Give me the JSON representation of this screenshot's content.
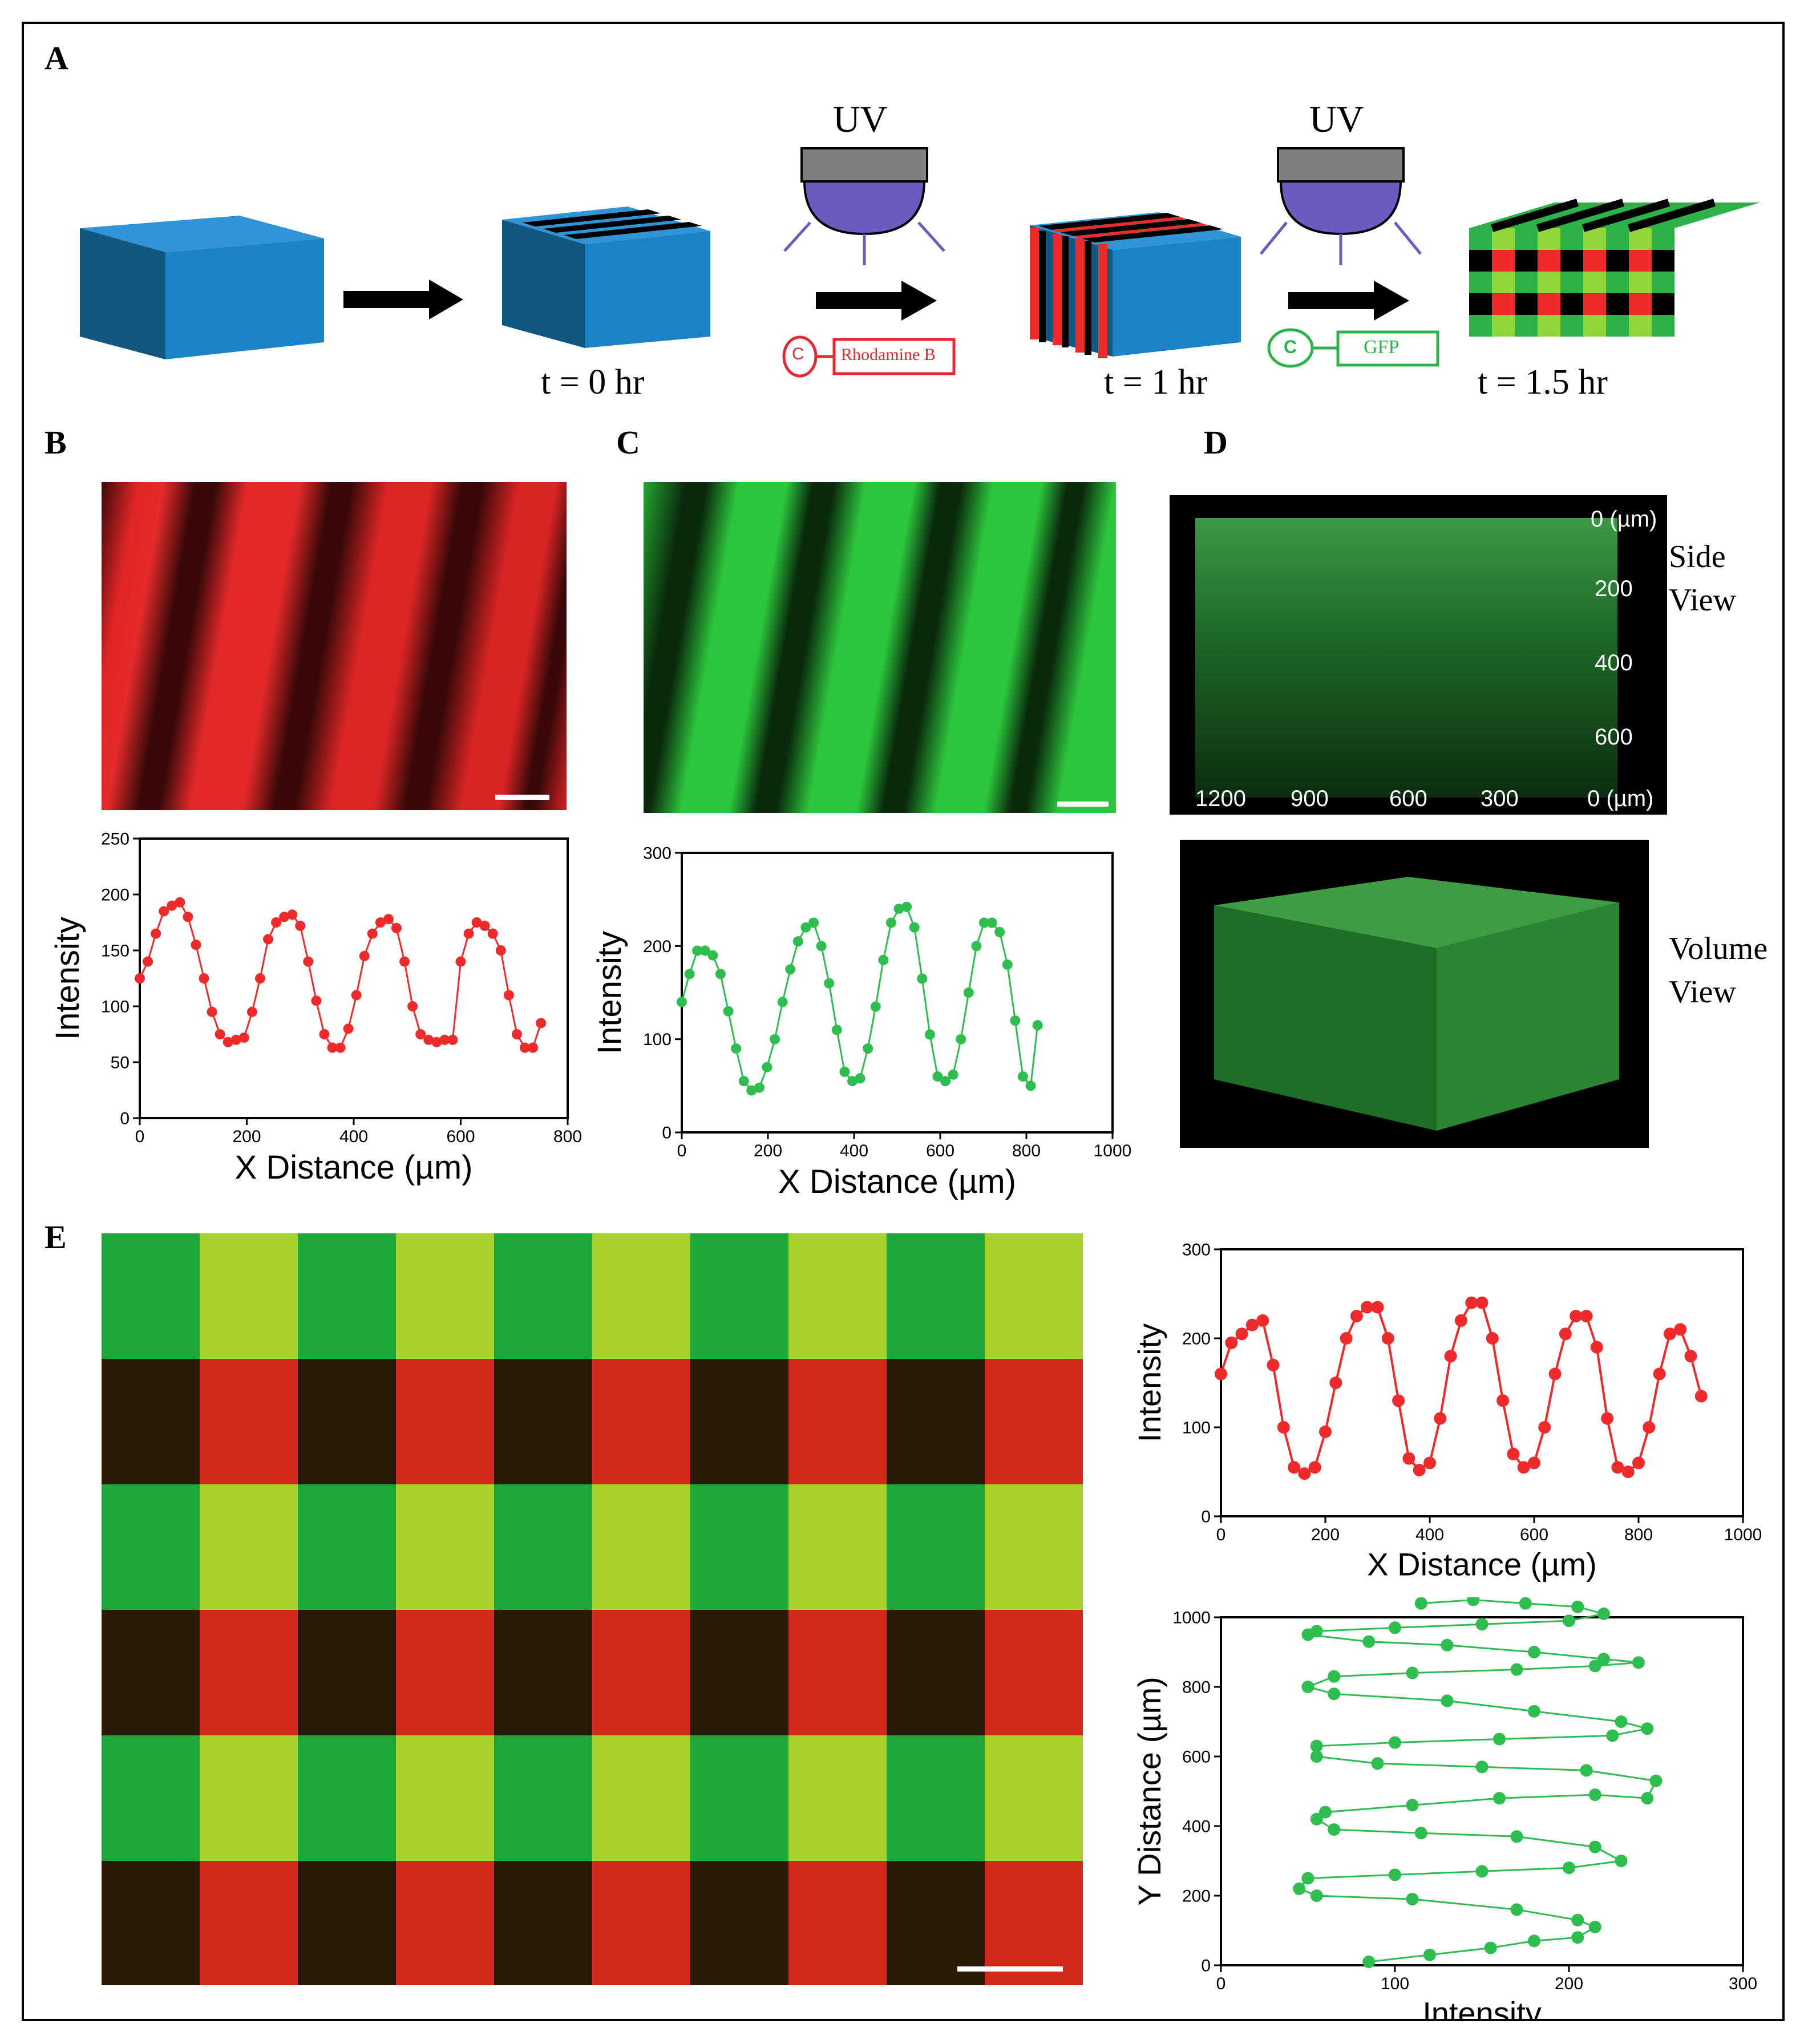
{
  "panels": {
    "a": "A",
    "b": "B",
    "c": "C",
    "d": "D",
    "e": "E"
  },
  "panel_a": {
    "uv_label_1": "UV",
    "uv_label_2": "UV",
    "time_1": "t = 0 hr",
    "time_2": "t = 1 hr",
    "time_3": "t = 1.5 hr",
    "reagent_1": {
      "tag": "C",
      "name": "Rhodamine B",
      "color": "#e8282f"
    },
    "reagent_2": {
      "tag": "C",
      "name": "GFP",
      "color": "#2bb34a"
    },
    "block_color": "#1b7fc1",
    "uv_lamp_color": "#6a5bbf"
  },
  "panel_d": {
    "side_ticks_right": [
      "0 (µm)",
      "200",
      "400",
      "600"
    ],
    "side_ticks_bottom": [
      "1200",
      "900",
      "600",
      "300",
      "0 (µm)"
    ],
    "side_view_label": [
      "Side",
      "View"
    ],
    "volume_view_label": [
      "Volume",
      "View"
    ]
  },
  "chart_data": [
    {
      "id": "B",
      "type": "line",
      "color": "#ee2a2a",
      "xlabel": "X Distance (µm)",
      "ylabel": "Intensity",
      "xlim": [
        0,
        800
      ],
      "ylim": [
        0,
        250
      ],
      "xticks": [
        0,
        200,
        400,
        600,
        800
      ],
      "yticks": [
        0,
        50,
        100,
        150,
        200,
        250
      ],
      "x": [
        0,
        15,
        30,
        45,
        60,
        75,
        90,
        105,
        120,
        135,
        150,
        165,
        180,
        195,
        210,
        225,
        240,
        255,
        270,
        285,
        300,
        315,
        330,
        345,
        360,
        375,
        390,
        405,
        420,
        435,
        450,
        465,
        480,
        495,
        510,
        525,
        540,
        555,
        570,
        585,
        600,
        615,
        630,
        645,
        660,
        675,
        690,
        705,
        720,
        735,
        750
      ],
      "y": [
        125,
        140,
        165,
        185,
        190,
        193,
        180,
        155,
        125,
        95,
        75,
        68,
        70,
        72,
        95,
        125,
        160,
        175,
        180,
        182,
        172,
        140,
        105,
        75,
        63,
        63,
        80,
        110,
        145,
        165,
        175,
        178,
        170,
        140,
        100,
        75,
        70,
        68,
        70,
        70,
        140,
        165,
        175,
        172,
        165,
        150,
        110,
        75,
        63,
        63,
        85
      ]
    },
    {
      "id": "C",
      "type": "line",
      "color": "#2ebd4f",
      "xlabel": "X Distance (µm)",
      "ylabel": "Intensity",
      "xlim": [
        0,
        1000
      ],
      "ylim": [
        0,
        300
      ],
      "xticks": [
        0,
        200,
        400,
        600,
        800,
        1000
      ],
      "yticks": [
        0,
        100,
        200,
        300
      ],
      "x": [
        0,
        18,
        36,
        54,
        72,
        90,
        108,
        126,
        144,
        162,
        180,
        198,
        216,
        234,
        252,
        270,
        288,
        306,
        324,
        342,
        360,
        378,
        396,
        414,
        432,
        450,
        468,
        486,
        504,
        522,
        540,
        558,
        576,
        594,
        612,
        630,
        648,
        666,
        684,
        702,
        720,
        738,
        756,
        774,
        792,
        810,
        826
      ],
      "y": [
        140,
        170,
        195,
        195,
        190,
        170,
        130,
        90,
        55,
        45,
        48,
        70,
        100,
        140,
        175,
        205,
        220,
        225,
        200,
        160,
        110,
        65,
        55,
        58,
        90,
        135,
        185,
        225,
        240,
        242,
        220,
        165,
        105,
        60,
        55,
        62,
        100,
        150,
        200,
        225,
        225,
        215,
        180,
        120,
        60,
        50,
        115
      ]
    },
    {
      "id": "E-top",
      "type": "line",
      "color": "#ee2a2a",
      "xlabel": "X Distance (µm)",
      "ylabel": "Intensity",
      "xlim": [
        0,
        1000
      ],
      "ylim": [
        0,
        300
      ],
      "xticks": [
        0,
        200,
        400,
        600,
        800,
        1000
      ],
      "yticks": [
        0,
        100,
        200,
        300
      ],
      "x": [
        0,
        20,
        40,
        60,
        80,
        100,
        120,
        140,
        160,
        180,
        200,
        220,
        240,
        260,
        280,
        300,
        320,
        340,
        360,
        380,
        400,
        420,
        440,
        460,
        480,
        500,
        520,
        540,
        560,
        580,
        600,
        620,
        640,
        660,
        680,
        700,
        720,
        740,
        760,
        780,
        800,
        820,
        840,
        860,
        880,
        900,
        920
      ],
      "y": [
        160,
        195,
        205,
        215,
        220,
        170,
        100,
        55,
        48,
        55,
        95,
        150,
        200,
        225,
        235,
        235,
        200,
        130,
        65,
        52,
        60,
        110,
        180,
        220,
        240,
        240,
        200,
        130,
        70,
        55,
        60,
        100,
        160,
        205,
        225,
        225,
        190,
        110,
        55,
        50,
        60,
        100,
        160,
        205,
        210,
        180,
        135
      ]
    },
    {
      "id": "E-bottom",
      "type": "line",
      "color": "#2ebd4f",
      "xlabel": "Intensity",
      "ylabel": "Y  Distance (µm)",
      "xlim": [
        0,
        300
      ],
      "ylim": [
        0,
        1000
      ],
      "xticks": [
        0,
        100,
        200,
        300
      ],
      "yticks": [
        0,
        200,
        400,
        600,
        800,
        1000
      ],
      "x": [
        85,
        120,
        155,
        180,
        205,
        215,
        205,
        170,
        110,
        55,
        45,
        50,
        100,
        150,
        200,
        230,
        215,
        170,
        115,
        65,
        55,
        60,
        110,
        160,
        215,
        245,
        250,
        210,
        150,
        90,
        55,
        55,
        100,
        160,
        225,
        245,
        230,
        180,
        130,
        65,
        50,
        65,
        110,
        170,
        215,
        240,
        220,
        180,
        130,
        85,
        50,
        55,
        100,
        150,
        200,
        220,
        205,
        175,
        145,
        115
      ],
      "y": [
        10,
        30,
        50,
        70,
        80,
        110,
        130,
        160,
        190,
        200,
        220,
        250,
        260,
        270,
        280,
        300,
        340,
        370,
        380,
        390,
        420,
        440,
        460,
        480,
        490,
        480,
        530,
        560,
        570,
        580,
        600,
        630,
        640,
        650,
        660,
        680,
        700,
        730,
        760,
        780,
        800,
        830,
        840,
        850,
        860,
        870,
        880,
        900,
        920,
        930,
        950,
        960,
        970,
        980,
        990,
        1010,
        1030,
        1040,
        1050,
        1040
      ]
    }
  ]
}
